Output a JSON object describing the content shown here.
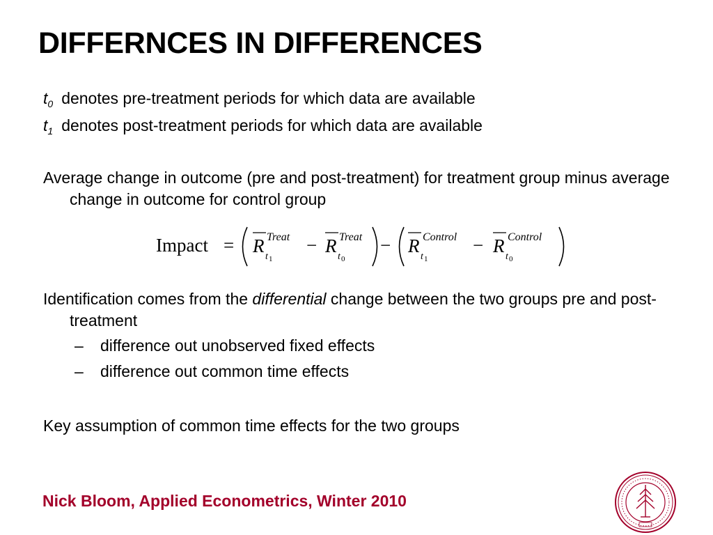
{
  "slide": {
    "title": "DIFFERNCES IN DIFFERENCES",
    "definitions": [
      {
        "var": "t",
        "sub": "0",
        "text": "denotes pre-treatment periods for which data are available"
      },
      {
        "var": "t",
        "sub": "1",
        "text": "denotes post-treatment periods for which data are available"
      }
    ],
    "paragraph1": "Average change in outcome (pre and post-treatment) for treatment group minus average change in outcome for control group",
    "equation": {
      "lhs": "Impact",
      "equals": "=",
      "minus": "−",
      "R": "R",
      "treat": "Treat",
      "control": "Control",
      "t": "t",
      "one": "1",
      "zero": "0"
    },
    "paragraph2": {
      "before": "Identification comes from the ",
      "emphasis": "differential",
      "after": " change between the two groups pre and post-treatment"
    },
    "bullets": [
      {
        "dash": "–",
        "text": "difference out unobserved fixed effects"
      },
      {
        "dash": "–",
        "text": "difference out common time effects"
      }
    ],
    "paragraph3": "Key assumption of common time effects for the two groups",
    "footer": "Nick Bloom, Applied Econometrics, Winter 2010",
    "seal_color": "#a3002a"
  }
}
